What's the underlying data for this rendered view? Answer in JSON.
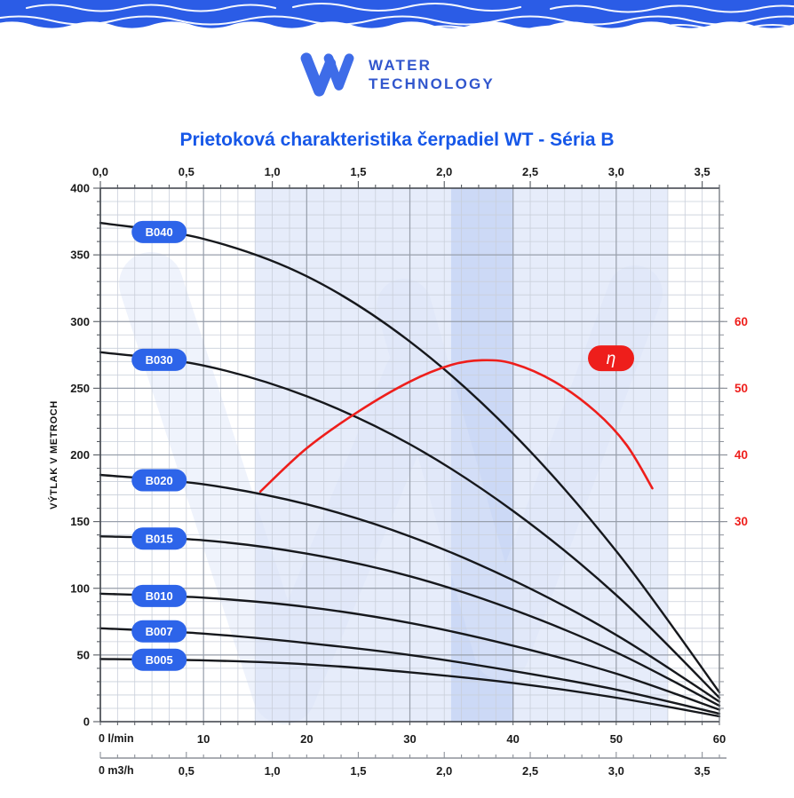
{
  "header": {
    "logo": {
      "line1": "WATER",
      "line2": "TECHNOLOGY"
    }
  },
  "colors": {
    "banner_blue": "#2b5ce6",
    "logo_blue": "#3e6ce8",
    "logo_text_blue": "#3156cd",
    "title_blue": "#1657e8",
    "pill_blue": "#2d64e9",
    "efficiency_red": "#ee1e1b",
    "grid_minor": "#c9cfda",
    "grid_major": "#989fab",
    "axis_dark": "#3a3f46",
    "band_light": "#dde5f8",
    "band_dark": "#c9d7f5",
    "watermark": "#dce5f8",
    "label_text": "#1b1b1b"
  },
  "chart_data": {
    "type": "line",
    "title": "Prietoková charakteristika čerpadiel WT - Séria B",
    "x_axis_bottom_lmin": {
      "unit_zero_label": "0 l/min",
      "range": [
        0,
        60
      ],
      "tick_values": [
        10,
        20,
        30,
        40,
        50,
        60
      ]
    },
    "x_axis_bottom_m3h": {
      "unit_zero_label": "0 m3/h",
      "range": [
        0,
        3.6
      ],
      "tick_labels": [
        "0,5",
        "1,0",
        "1,5",
        "2,0",
        "2,5",
        "3,0",
        "3,5"
      ],
      "tick_values": [
        0.5,
        1.0,
        1.5,
        2.0,
        2.5,
        3.0,
        3.5
      ],
      "minor_step": 0.1
    },
    "x_axis_top_m3h": {
      "range": [
        0,
        3.6
      ],
      "tick_labels": [
        "0,0",
        "0,5",
        "1,0",
        "1,5",
        "2,0",
        "2,5",
        "3,0",
        "3,5"
      ],
      "tick_values": [
        0.0,
        0.5,
        1.0,
        1.5,
        2.0,
        2.5,
        3.0,
        3.5
      ],
      "minor_step": 0.1
    },
    "y_axis_left": {
      "label": "VÝTLAK V METROCH",
      "range": [
        0,
        400
      ],
      "tick_values": [
        0,
        50,
        100,
        150,
        200,
        250,
        300,
        350,
        400
      ],
      "minor_step": 10
    },
    "y_axis_right_eta": {
      "label": "η",
      "tick_values": [
        30,
        40,
        50,
        60
      ],
      "head_m_per_eta_pct": 5
    },
    "grid": {
      "shown": true
    },
    "bands": [
      {
        "x_from_lmin": 15,
        "x_to_lmin": 55,
        "role": "operating-range"
      },
      {
        "x_from_lmin": 34,
        "x_to_lmin": 40,
        "role": "optimal-range"
      }
    ],
    "series_label_flow_lmin": 5.7,
    "series": [
      {
        "name": "B040",
        "points_lmin_m": [
          [
            0,
            374
          ],
          [
            10,
            362
          ],
          [
            20,
            334
          ],
          [
            30,
            285
          ],
          [
            40,
            216
          ],
          [
            50,
            128
          ],
          [
            60,
            22
          ]
        ]
      },
      {
        "name": "B030",
        "points_lmin_m": [
          [
            0,
            277
          ],
          [
            10,
            267
          ],
          [
            20,
            244
          ],
          [
            30,
            208
          ],
          [
            40,
            158
          ],
          [
            50,
            95
          ],
          [
            60,
            18
          ]
        ]
      },
      {
        "name": "B020",
        "points_lmin_m": [
          [
            0,
            185
          ],
          [
            10,
            178
          ],
          [
            20,
            163
          ],
          [
            30,
            139
          ],
          [
            40,
            106
          ],
          [
            50,
            65
          ],
          [
            60,
            15
          ]
        ]
      },
      {
        "name": "B015",
        "points_lmin_m": [
          [
            0,
            139
          ],
          [
            10,
            136
          ],
          [
            20,
            126
          ],
          [
            30,
            109
          ],
          [
            40,
            84
          ],
          [
            50,
            52
          ],
          [
            60,
            12
          ]
        ]
      },
      {
        "name": "B010",
        "points_lmin_m": [
          [
            0,
            96
          ],
          [
            10,
            93
          ],
          [
            20,
            86
          ],
          [
            30,
            74
          ],
          [
            40,
            57
          ],
          [
            50,
            36
          ],
          [
            60,
            9
          ]
        ]
      },
      {
        "name": "B007",
        "points_lmin_m": [
          [
            0,
            70
          ],
          [
            10,
            66
          ],
          [
            20,
            59
          ],
          [
            30,
            50
          ],
          [
            40,
            38
          ],
          [
            50,
            24
          ],
          [
            60,
            6
          ]
        ]
      },
      {
        "name": "B005",
        "points_lmin_m": [
          [
            0,
            47
          ],
          [
            10,
            46
          ],
          [
            20,
            43
          ],
          [
            30,
            37
          ],
          [
            40,
            29
          ],
          [
            50,
            18
          ],
          [
            60,
            4
          ]
        ]
      }
    ],
    "efficiency_curve": {
      "label": "η",
      "points_lmin_pct": [
        [
          15.5,
          34.5
        ],
        [
          20,
          41
        ],
        [
          25,
          46.5
        ],
        [
          30,
          51
        ],
        [
          34,
          53.5
        ],
        [
          37,
          54.2
        ],
        [
          40,
          53.7
        ],
        [
          44,
          51
        ],
        [
          48,
          46.5
        ],
        [
          51,
          41.5
        ],
        [
          53.5,
          35
        ]
      ],
      "label_pos_lmin_pct": [
        49.5,
        54.5
      ]
    }
  }
}
